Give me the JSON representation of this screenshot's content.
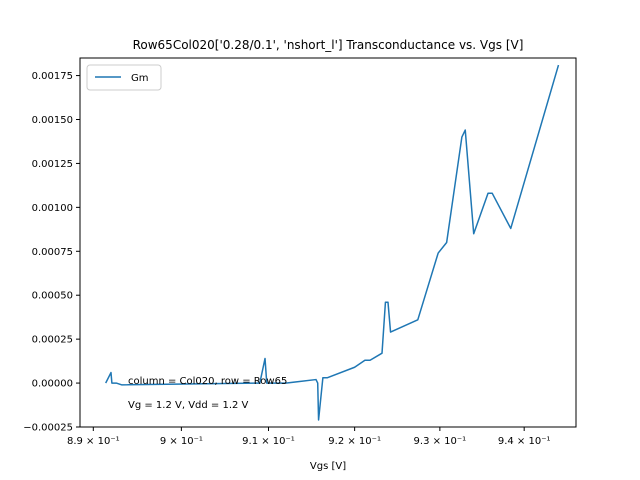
{
  "chart_data": {
    "type": "line",
    "title": "Row65Col020['0.28/0.1', 'nshort_l'] Transconductance vs. Vgs [V]",
    "xlabel": "Vgs [V]",
    "ylabel": "",
    "xscale": "log",
    "xlim": [
      0.8885,
      0.9462
    ],
    "ylim": [
      -0.00025,
      0.00185
    ],
    "grid": false,
    "legend_position": "top-left",
    "x_ticks": [
      {
        "value": 0.89,
        "label": "8.9 × 10⁻¹"
      },
      {
        "value": 0.9,
        "label": "9 × 10⁻¹"
      },
      {
        "value": 0.91,
        "label": "9.1 × 10⁻¹"
      },
      {
        "value": 0.92,
        "label": "9.2 × 10⁻¹"
      },
      {
        "value": 0.93,
        "label": "9.3 × 10⁻¹"
      },
      {
        "value": 0.94,
        "label": "9.4 × 10⁻¹"
      }
    ],
    "y_ticks": [
      {
        "value": -0.00025,
        "label": "−0.00025"
      },
      {
        "value": 0.0,
        "label": "0.00000"
      },
      {
        "value": 0.00025,
        "label": "0.00025"
      },
      {
        "value": 0.0005,
        "label": "0.00050"
      },
      {
        "value": 0.00075,
        "label": "0.00075"
      },
      {
        "value": 0.001,
        "label": "0.00100"
      },
      {
        "value": 0.00125,
        "label": "0.00125"
      },
      {
        "value": 0.0015,
        "label": "0.00150"
      },
      {
        "value": 0.00175,
        "label": "0.00175"
      }
    ],
    "series": [
      {
        "name": "Gm",
        "color": "#1f77b4",
        "x": [
          0.8914,
          0.892,
          0.8921,
          0.8926,
          0.8932,
          0.909,
          0.9096,
          0.9098,
          0.912,
          0.9155,
          0.9157,
          0.9158,
          0.9163,
          0.9168,
          0.92,
          0.9212,
          0.9218,
          0.9232,
          0.9236,
          0.9239,
          0.9242,
          0.9274,
          0.9298,
          0.9308,
          0.9326,
          0.933,
          0.934,
          0.9357,
          0.9362,
          0.9384,
          0.9441
        ],
        "y": [
          0.0,
          6e-05,
          0.0,
          0.0,
          -1e-05,
          0.0,
          0.00014,
          0.0,
          0.0,
          2e-05,
          0.0,
          -0.00021,
          3e-05,
          3e-05,
          9e-05,
          0.00013,
          0.00013,
          0.00017,
          0.00046,
          0.00046,
          0.00029,
          0.00036,
          0.00074,
          0.0008,
          0.0014,
          0.00144,
          0.00085,
          0.00108,
          0.00108,
          0.00088,
          0.00181
        ]
      }
    ],
    "annotations": [
      "column = Col020, row = Row65",
      "Vg = 1.2 V, Vdd = 1.2 V"
    ]
  }
}
